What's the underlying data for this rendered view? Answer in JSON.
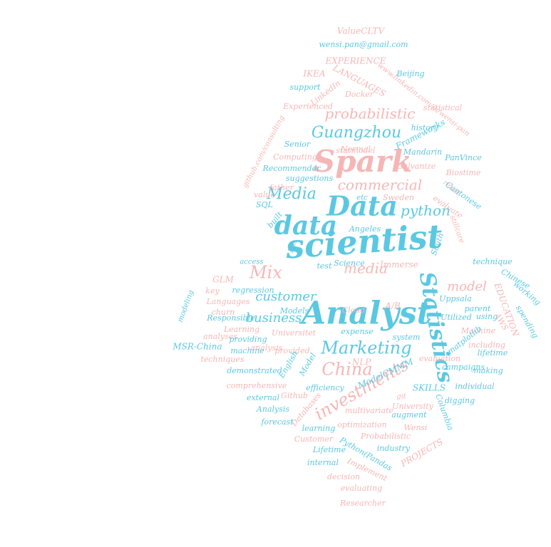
{
  "palette": {
    "blue": "#5bc8e2",
    "pink": "#f6b6b6",
    "background": "#ffffff"
  },
  "words": [
    {
      "text": "scientist",
      "color": "blue"
    },
    {
      "text": "Analyst",
      "color": "blue"
    },
    {
      "text": "Data",
      "color": "blue"
    },
    {
      "text": "data",
      "color": "blue"
    },
    {
      "text": "Spark",
      "color": "pink"
    },
    {
      "text": "Statistics",
      "color": "blue"
    },
    {
      "text": "Marketing",
      "color": "blue"
    },
    {
      "text": "investments",
      "color": "pink"
    },
    {
      "text": "China",
      "color": "pink"
    },
    {
      "text": "Guangzhou",
      "color": "blue"
    },
    {
      "text": "probabilistic",
      "color": "pink"
    },
    {
      "text": "commercial",
      "color": "pink"
    },
    {
      "text": "Media",
      "color": "blue"
    },
    {
      "text": "python",
      "color": "blue"
    },
    {
      "text": "media",
      "color": "pink"
    },
    {
      "text": "Mix",
      "color": "pink"
    },
    {
      "text": "customer",
      "color": "blue"
    },
    {
      "text": "business",
      "color": "blue"
    },
    {
      "text": "model",
      "color": "pink"
    },
    {
      "text": "ValueCLTV",
      "color": "pink"
    },
    {
      "text": "wensi.pan@gmail.com",
      "color": "blue"
    },
    {
      "text": "EXPERIENCE",
      "color": "pink"
    },
    {
      "text": "IKEA",
      "color": "pink"
    },
    {
      "text": "LANGUAGES",
      "color": "pink"
    },
    {
      "text": "www.linkedin.com/in/wensi-pan",
      "color": "pink"
    },
    {
      "text": "Beijing",
      "color": "blue"
    },
    {
      "text": "support",
      "color": "blue"
    },
    {
      "text": "LinkedIn",
      "color": "pink"
    },
    {
      "text": "Docker",
      "color": "pink"
    },
    {
      "text": "statistical",
      "color": "pink"
    },
    {
      "text": "Experienced",
      "color": "pink"
    },
    {
      "text": "history",
      "color": "blue"
    },
    {
      "text": "statmodel",
      "color": "pink"
    },
    {
      "text": "Frameworks",
      "color": "blue"
    },
    {
      "text": "github.com/consulting",
      "color": "pink"
    },
    {
      "text": "Senior",
      "color": "blue"
    },
    {
      "text": "Normal",
      "color": "pink"
    },
    {
      "text": "Mandarin",
      "color": "blue"
    },
    {
      "text": "Computing",
      "color": "pink"
    },
    {
      "text": "PanVince",
      "color": "blue"
    },
    {
      "text": "Galvanize",
      "color": "pink"
    },
    {
      "text": "Recommender",
      "color": "blue"
    },
    {
      "text": "Biostime",
      "color": "pink"
    },
    {
      "text": "suggestions",
      "color": "blue"
    },
    {
      "text": "father",
      "color": "pink"
    },
    {
      "text": "retail",
      "color": "pink"
    },
    {
      "text": "Cantonese",
      "color": "blue"
    },
    {
      "text": "value",
      "color": "pink"
    },
    {
      "text": "etc",
      "color": "blue"
    },
    {
      "text": "Sweden",
      "color": "pink"
    },
    {
      "text": "evaluate",
      "color": "pink"
    },
    {
      "text": "SQL",
      "color": "blue"
    },
    {
      "text": "built",
      "color": "blue"
    },
    {
      "text": "Angeles",
      "color": "blue"
    },
    {
      "text": "stillcare",
      "color": "pink"
    },
    {
      "text": "Los",
      "color": "blue"
    },
    {
      "text": "South",
      "color": "blue"
    },
    {
      "text": "access",
      "color": "blue"
    },
    {
      "text": "technique",
      "color": "blue"
    },
    {
      "text": "test",
      "color": "blue"
    },
    {
      "text": "Science",
      "color": "blue"
    },
    {
      "text": "Immerse",
      "color": "pink"
    },
    {
      "text": "Chinese",
      "color": "blue"
    },
    {
      "text": "working",
      "color": "blue"
    },
    {
      "text": "GLM",
      "color": "pink"
    },
    {
      "text": "key",
      "color": "pink"
    },
    {
      "text": "regression",
      "color": "blue"
    },
    {
      "text": "Uppsala",
      "color": "blue"
    },
    {
      "text": "parent",
      "color": "blue"
    },
    {
      "text": "EDUCATION",
      "color": "pink"
    },
    {
      "text": "Languages",
      "color": "pink"
    },
    {
      "text": "A/B",
      "color": "pink"
    },
    {
      "text": "Cloud",
      "color": "pink"
    },
    {
      "text": "using",
      "color": "blue"
    },
    {
      "text": "modeling",
      "color": "blue"
    },
    {
      "text": "churn",
      "color": "pink"
    },
    {
      "text": "Responsible",
      "color": "blue"
    },
    {
      "text": "Models",
      "color": "blue"
    },
    {
      "text": "Utilized",
      "color": "blue"
    },
    {
      "text": "AWS",
      "color": "pink"
    },
    {
      "text": "spending",
      "color": "blue"
    },
    {
      "text": "Learning",
      "color": "pink"
    },
    {
      "text": "Universitet",
      "color": "pink"
    },
    {
      "text": "expense",
      "color": "blue"
    },
    {
      "text": "system",
      "color": "blue"
    },
    {
      "text": "Machine",
      "color": "pink"
    },
    {
      "text": "analyses",
      "color": "pink"
    },
    {
      "text": "providing",
      "color": "blue"
    },
    {
      "text": "matplotlib",
      "color": "blue"
    },
    {
      "text": "including",
      "color": "pink"
    },
    {
      "text": "MSR-China",
      "color": "blue"
    },
    {
      "text": "analysis",
      "color": "pink"
    },
    {
      "text": "machine",
      "color": "blue"
    },
    {
      "text": "provided",
      "color": "pink"
    },
    {
      "text": "lifetime",
      "color": "blue"
    },
    {
      "text": "techniques",
      "color": "pink"
    },
    {
      "text": "English",
      "color": "blue"
    },
    {
      "text": "Model",
      "color": "blue"
    },
    {
      "text": "NLP",
      "color": "pink"
    },
    {
      "text": "making",
      "color": "blue"
    },
    {
      "text": "evaluation",
      "color": "pink"
    },
    {
      "text": "demonstrated",
      "color": "blue"
    },
    {
      "text": "ModelCMMM",
      "color": "blue"
    },
    {
      "text": "campaigns",
      "color": "blue"
    },
    {
      "text": "comprehensive",
      "color": "pink"
    },
    {
      "text": "efficiency",
      "color": "blue"
    },
    {
      "text": "SKILLS",
      "color": "blue"
    },
    {
      "text": "individual",
      "color": "blue"
    },
    {
      "text": "external",
      "color": "blue"
    },
    {
      "text": "Github",
      "color": "pink"
    },
    {
      "text": "git",
      "color": "pink"
    },
    {
      "text": "University",
      "color": "pink"
    },
    {
      "text": "Columbia",
      "color": "blue"
    },
    {
      "text": "digging",
      "color": "blue"
    },
    {
      "text": "Analysis",
      "color": "blue"
    },
    {
      "text": "Databases",
      "color": "pink"
    },
    {
      "text": "multivariate",
      "color": "pink"
    },
    {
      "text": "augment",
      "color": "blue"
    },
    {
      "text": "forecast",
      "color": "blue"
    },
    {
      "text": "learning",
      "color": "blue"
    },
    {
      "text": "optimization",
      "color": "pink"
    },
    {
      "text": "Wensi",
      "color": "pink"
    },
    {
      "text": "Customer",
      "color": "pink"
    },
    {
      "text": "Python(Pandas",
      "color": "blue"
    },
    {
      "text": "Probabilistic",
      "color": "pink"
    },
    {
      "text": "PROJECTS",
      "color": "pink"
    },
    {
      "text": "Lifetime",
      "color": "blue"
    },
    {
      "text": "industry",
      "color": "blue"
    },
    {
      "text": "internal",
      "color": "blue"
    },
    {
      "text": "Implement",
      "color": "pink"
    },
    {
      "text": "decision",
      "color": "pink"
    },
    {
      "text": "evaluating",
      "color": "pink"
    },
    {
      "text": "Researcher",
      "color": "pink"
    }
  ]
}
